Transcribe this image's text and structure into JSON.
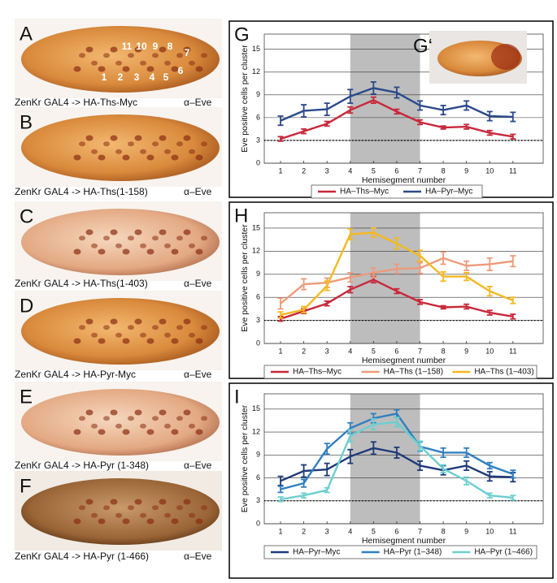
{
  "panels": [
    {
      "label": "A",
      "caption": "ZenKr GAL4 -> HA-Ths-Myc",
      "stain": "α–Eve",
      "segment_labels": [
        "1",
        "2",
        "3",
        "4",
        "5",
        "6",
        "7",
        "8",
        "9",
        "10",
        "11"
      ]
    },
    {
      "label": "B",
      "caption": "ZenKr GAL4 -> HA-Ths(1-158)",
      "stain": "α–Eve"
    },
    {
      "label": "C",
      "caption": "ZenKr GAL4 -> HA-Ths(1-403)",
      "stain": "α–Eve"
    },
    {
      "label": "D",
      "caption": "ZenKr GAL4 -> HA-Pyr-Myc",
      "stain": "α–Eve"
    },
    {
      "label": "E",
      "caption": "ZenKr GAL4 -> HA-Pyr (1-348)",
      "stain": "α–Eve"
    },
    {
      "label": "F",
      "caption": "ZenKr GAL4 -> HA-Pyr (1-466)",
      "stain": "α–Eve"
    }
  ],
  "chart_data": [
    {
      "type": "line",
      "label": "G",
      "inset_label": "G‘",
      "xlabel": "Hemisegment number",
      "ylabel": "Eve positive cells per cluster",
      "x": [
        1,
        2,
        3,
        4,
        5,
        6,
        7,
        8,
        9,
        10,
        11
      ],
      "xlim": [
        0.3,
        12.3
      ],
      "xticks": [
        1,
        2,
        3,
        4,
        5,
        6,
        7,
        8,
        9,
        10,
        11
      ],
      "ylim": [
        0,
        17
      ],
      "yticks": [
        0,
        3,
        6,
        9,
        12,
        15
      ],
      "shade": [
        4,
        7
      ],
      "refline": 3,
      "series": [
        {
          "name": "HA–Ths–Myc",
          "color": "#c8283a",
          "values": [
            3.2,
            4.2,
            5.2,
            7.0,
            8.3,
            6.8,
            5.4,
            4.7,
            4.8,
            4.0,
            3.5
          ],
          "errors": [
            0.3,
            0.3,
            0.3,
            0.4,
            0.4,
            0.3,
            0.3,
            0.2,
            0.3,
            0.3,
            0.3
          ]
        },
        {
          "name": "HA–Pyr–Myc",
          "color": "#2b4a8c",
          "values": [
            5.6,
            6.9,
            7.1,
            8.8,
            9.9,
            9.3,
            7.6,
            7.0,
            7.6,
            6.2,
            6.1
          ],
          "errors": [
            0.6,
            0.8,
            0.8,
            0.9,
            0.8,
            0.7,
            0.6,
            0.6,
            0.6,
            0.6,
            0.6
          ]
        }
      ]
    },
    {
      "type": "line",
      "label": "H",
      "xlabel": "Hemisegment number",
      "ylabel": "Eve positive cells per cluster",
      "x": [
        1,
        2,
        3,
        4,
        5,
        6,
        7,
        8,
        9,
        10,
        11
      ],
      "xlim": [
        0.3,
        12.3
      ],
      "xticks": [
        1,
        2,
        3,
        4,
        5,
        6,
        7,
        8,
        9,
        10,
        11
      ],
      "ylim": [
        0,
        17
      ],
      "yticks": [
        0,
        3,
        6,
        9,
        12,
        15
      ],
      "shade": [
        4,
        7
      ],
      "refline": 3,
      "series": [
        {
          "name": "HA–Ths–Myc",
          "color": "#c8283a",
          "values": [
            3.2,
            4.2,
            5.2,
            7.0,
            8.3,
            6.8,
            5.4,
            4.7,
            4.8,
            4.0,
            3.5
          ],
          "errors": [
            0.3,
            0.3,
            0.3,
            0.4,
            0.4,
            0.3,
            0.3,
            0.2,
            0.3,
            0.3,
            0.3
          ]
        },
        {
          "name": "HA–Ths (1–158)",
          "color": "#ee9a78",
          "values": [
            5.2,
            7.7,
            7.9,
            8.6,
            9.2,
            9.7,
            9.8,
            11.1,
            10.1,
            10.3,
            10.7
          ],
          "errors": [
            0.7,
            0.7,
            0.6,
            0.6,
            0.6,
            0.6,
            0.7,
            0.8,
            0.6,
            0.8,
            0.7
          ]
        },
        {
          "name": "HA–Ths (1–403)",
          "color": "#f5b820",
          "values": [
            3.7,
            4.4,
            7.5,
            14.2,
            14.4,
            13.0,
            11.4,
            8.7,
            8.7,
            6.8,
            5.6
          ],
          "errors": [
            0.4,
            0.4,
            0.6,
            0.7,
            0.6,
            0.7,
            0.7,
            0.6,
            0.5,
            0.6,
            0.4
          ]
        }
      ]
    },
    {
      "type": "line",
      "label": "I",
      "xlabel": "Hemisegment number",
      "ylabel": "Eve positive cells per cluster",
      "x": [
        1,
        2,
        3,
        4,
        5,
        6,
        7,
        8,
        9,
        10,
        11
      ],
      "xlim": [
        0.3,
        12.3
      ],
      "xticks": [
        1,
        2,
        3,
        4,
        5,
        6,
        7,
        8,
        9,
        10,
        11
      ],
      "ylim": [
        0,
        17
      ],
      "yticks": [
        0,
        3,
        6,
        9,
        12,
        15
      ],
      "shade": [
        4,
        7
      ],
      "refline": 3,
      "series": [
        {
          "name": "HA–Pyr–Myc",
          "color": "#1f3a7a",
          "values": [
            5.6,
            6.9,
            7.1,
            8.8,
            9.9,
            9.3,
            7.6,
            7.0,
            7.6,
            6.2,
            6.1
          ],
          "errors": [
            0.6,
            0.8,
            0.8,
            0.9,
            0.8,
            0.7,
            0.6,
            0.6,
            0.6,
            0.6,
            0.6
          ]
        },
        {
          "name": "HA–Pyr (1–348)",
          "color": "#2f7fc1",
          "values": [
            4.5,
            5.3,
            9.8,
            12.5,
            13.8,
            14.4,
            10.1,
            9.3,
            9.3,
            7.6,
            6.5
          ],
          "errors": [
            0.4,
            0.5,
            0.7,
            0.7,
            0.6,
            0.5,
            0.6,
            0.6,
            0.6,
            0.4,
            0.5
          ]
        },
        {
          "name": "HA–Pyr (1–466)",
          "color": "#6dcfcf",
          "values": [
            3.2,
            3.7,
            4.4,
            11.5,
            13.0,
            13.3,
            10.2,
            7.2,
            5.6,
            3.7,
            3.4
          ],
          "errors": [
            0.3,
            0.3,
            0.3,
            0.8,
            0.7,
            0.6,
            0.6,
            0.5,
            0.5,
            0.3,
            0.3
          ]
        }
      ]
    }
  ]
}
